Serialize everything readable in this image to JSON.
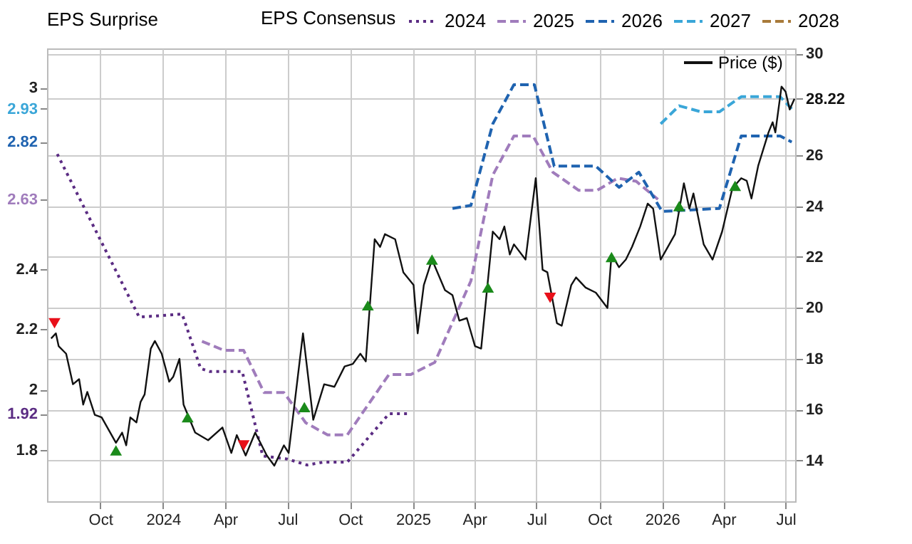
{
  "chart_data": {
    "type": "line",
    "legend_title": "EPS Consensus",
    "legend": "top",
    "grid": true,
    "annotations": [
      "EPS Surprise"
    ],
    "xlim": [
      "2023-07-15",
      "2026-07-15"
    ],
    "xticks": [
      {
        "value": "2023-10-01",
        "label": "Oct"
      },
      "2024",
      {
        "value": "2024-04-01",
        "label": "Apr"
      },
      {
        "value": "2024-07-01",
        "label": "Jul"
      },
      {
        "value": "2024-10-01",
        "label": "Oct"
      },
      "2025",
      {
        "value": "2025-04-01",
        "label": "Apr"
      },
      {
        "value": "2025-07-01",
        "label": "Jul"
      },
      {
        "value": "2025-10-01",
        "label": "Oct"
      },
      "2026",
      {
        "value": "2026-04-01",
        "label": "Apr"
      },
      {
        "value": "2026-07-01",
        "label": "Jul"
      }
    ],
    "ylim": [
      1.63,
      3.13
    ],
    "yticks": [
      1.8,
      1.92,
      2,
      2.2,
      2.4,
      2.63,
      2.82,
      2.93,
      3
    ],
    "y2lim": [
      12.4,
      30.2
    ],
    "y2ticks": [
      14,
      16,
      18,
      20,
      22,
      24,
      26,
      28.22,
      30
    ],
    "series": [
      {
        "name": "2024",
        "color": "#5b2c83",
        "line_style": "dotted",
        "x": [
          "2023-07-30",
          "2023-11-27",
          "2024-01-29",
          "2024-02-25",
          "2024-03-09",
          "2024-04-26",
          "2024-05-26",
          "2024-07-01",
          "2024-07-30",
          "2024-08-24",
          "2024-09-27",
          "2024-11-27",
          "2024-12-29"
        ],
        "values": [
          2.78,
          2.24,
          2.25,
          2.07,
          2.06,
          2.06,
          1.78,
          1.77,
          1.75,
          1.76,
          1.76,
          1.92,
          1.92
        ]
      },
      {
        "name": "2025",
        "color": "#a07cbc",
        "line_style": "dashed",
        "x": [
          "2024-02-27",
          "2024-03-30",
          "2024-04-28",
          "2024-05-28",
          "2024-06-26",
          "2024-07-28",
          "2024-08-29",
          "2024-09-27",
          "2024-11-27",
          "2024-12-29",
          "2025-02-02",
          "2025-03-27",
          "2025-04-28",
          "2025-05-29",
          "2025-06-26",
          "2025-07-25",
          "2025-09-01",
          "2025-09-28",
          "2025-10-28",
          "2025-11-24",
          "2025-12-26"
        ],
        "values": [
          2.16,
          2.13,
          2.13,
          1.99,
          1.99,
          1.89,
          1.85,
          1.85,
          2.05,
          2.05,
          2.09,
          2.36,
          2.71,
          2.84,
          2.84,
          2.72,
          2.66,
          2.66,
          2.7,
          2.69,
          2.63
        ]
      },
      {
        "name": "2026",
        "color": "#1f63b0",
        "line_style": "dashed",
        "x": [
          "2025-02-28",
          "2025-03-27",
          "2025-04-28",
          "2025-05-29",
          "2025-06-28",
          "2025-07-27",
          "2025-09-26",
          "2025-10-30",
          "2025-11-28",
          "2026-01-01",
          "2026-03-26",
          "2026-04-27",
          "2026-06-23",
          "2026-07-10"
        ],
        "values": [
          2.6,
          2.61,
          2.88,
          3.01,
          3.01,
          2.74,
          2.74,
          2.67,
          2.72,
          2.59,
          2.6,
          2.84,
          2.84,
          2.82
        ]
      },
      {
        "name": "2027",
        "color": "#3aa6d8",
        "line_style": "dashed",
        "x": [
          "2025-12-30",
          "2026-01-26",
          "2026-02-27",
          "2026-03-26",
          "2026-04-27",
          "2026-06-23",
          "2026-07-10"
        ],
        "values": [
          2.88,
          2.94,
          2.92,
          2.92,
          2.97,
          2.97,
          2.93
        ]
      },
      {
        "name": "2028",
        "color": "#a87a3a",
        "line_style": "dashed"
      },
      {
        "name": "Price ($)",
        "color": "#111111",
        "axis": "y2",
        "line_style": "solid",
        "x": [
          "2023-07-21",
          "2023-07-28",
          "2023-08-01",
          "2023-08-12",
          "2023-08-22",
          "2023-08-31",
          "2023-09-06",
          "2023-09-12",
          "2023-09-23",
          "2023-10-03",
          "2023-10-24",
          "2023-11-02",
          "2023-11-08",
          "2023-11-14",
          "2023-11-23",
          "2023-11-29",
          "2023-12-05",
          "2023-12-14",
          "2023-12-20",
          "2023-12-30",
          "2024-01-10",
          "2024-01-16",
          "2024-01-25",
          "2024-01-31",
          "2024-02-17",
          "2024-03-07",
          "2024-03-28",
          "2024-04-10",
          "2024-04-18",
          "2024-05-01",
          "2024-05-15",
          "2024-06-01",
          "2024-06-12",
          "2024-06-26",
          "2024-07-03",
          "2024-07-24",
          "2024-08-08",
          "2024-08-24",
          "2024-09-08",
          "2024-09-23",
          "2024-10-05",
          "2024-10-16",
          "2024-10-24",
          "2024-11-06",
          "2024-11-14",
          "2024-11-21",
          "2024-12-06",
          "2024-12-18",
          "2025-01-02",
          "2025-01-08",
          "2025-01-17",
          "2025-01-29",
          "2025-02-17",
          "2025-02-28",
          "2025-03-10",
          "2025-03-21",
          "2025-04-02",
          "2025-04-11",
          "2025-04-28",
          "2025-05-08",
          "2025-05-15",
          "2025-05-23",
          "2025-05-29",
          "2025-06-15",
          "2025-06-30",
          "2025-07-10",
          "2025-07-17",
          "2025-07-31",
          "2025-08-07",
          "2025-08-21",
          "2025-08-28",
          "2025-09-11",
          "2025-09-26",
          "2025-10-13",
          "2025-10-19",
          "2025-10-30",
          "2025-11-09",
          "2025-11-18",
          "2025-11-30",
          "2025-12-11",
          "2025-12-19",
          "2025-12-30",
          "2026-01-20",
          "2026-02-02",
          "2026-02-10",
          "2026-02-16",
          "2026-03-03",
          "2026-03-16",
          "2026-03-30",
          "2026-04-14",
          "2026-04-27",
          "2026-05-05",
          "2026-05-12",
          "2026-05-22",
          "2026-06-06",
          "2026-06-12",
          "2026-06-16",
          "2026-06-25",
          "2026-07-01",
          "2026-07-07",
          "2026-07-14"
        ],
        "values": [
          18.8,
          19.0,
          18.5,
          18.2,
          17.0,
          17.2,
          16.2,
          16.7,
          15.8,
          15.7,
          14.7,
          15.1,
          14.6,
          15.7,
          15.5,
          16.3,
          16.6,
          18.4,
          18.7,
          18.2,
          17.1,
          17.3,
          18.0,
          16.2,
          15.1,
          14.8,
          15.3,
          14.3,
          15.0,
          14.2,
          15.1,
          14.2,
          13.8,
          14.6,
          14.3,
          19.0,
          15.6,
          17.0,
          16.9,
          17.7,
          17.8,
          18.2,
          17.9,
          22.7,
          22.4,
          22.9,
          22.7,
          21.4,
          20.9,
          19.0,
          20.9,
          21.9,
          20.7,
          20.5,
          19.5,
          19.6,
          18.5,
          18.4,
          23.0,
          22.7,
          23.2,
          22.1,
          22.5,
          21.9,
          25.1,
          21.5,
          21.4,
          19.4,
          19.3,
          20.9,
          21.2,
          20.8,
          20.6,
          20.0,
          22.1,
          21.6,
          21.9,
          22.4,
          23.2,
          24.1,
          23.9,
          21.9,
          22.9,
          24.9,
          23.9,
          24.5,
          22.5,
          21.9,
          23.0,
          24.7,
          25.1,
          25.0,
          24.3,
          25.6,
          26.9,
          27.3,
          26.9,
          28.7,
          28.5,
          27.8,
          28.22
        ]
      },
      {
        "type": "scatter",
        "color": "#1a8a1a",
        "axis": "y2",
        "marker": "triangle",
        "x": [
          "2023-10-24",
          "2024-02-06",
          "2024-07-26",
          "2024-10-27",
          "2025-01-29",
          "2025-04-21",
          "2025-10-19",
          "2026-01-26",
          "2026-04-18"
        ],
        "values": [
          14.4,
          15.7,
          16.1,
          20.1,
          21.9,
          20.8,
          22.0,
          24.0,
          24.8
        ]
      },
      {
        "type": "scatter",
        "color": "#e8101a",
        "axis": "y2",
        "marker": "triangle-down",
        "x": [
          "2023-07-26",
          "2024-04-28",
          "2025-07-21"
        ],
        "values": [
          19.4,
          14.6,
          20.4
        ]
      }
    ]
  }
}
